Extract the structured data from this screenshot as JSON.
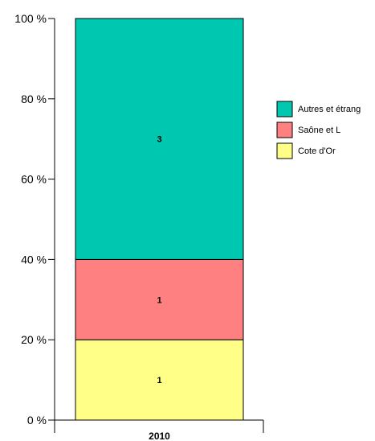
{
  "chart_data": {
    "type": "bar",
    "stacked": true,
    "normalized": true,
    "categories": [
      "2010"
    ],
    "series": [
      {
        "name": "Cote d'Or",
        "values": [
          1
        ],
        "color": "#FFFF88"
      },
      {
        "name": "Saône et L",
        "values": [
          1
        ],
        "color": "#FF8080"
      },
      {
        "name": "Autres et étrang",
        "values": [
          3
        ],
        "color": "#00C8B0"
      }
    ],
    "ylim": [
      0,
      100
    ],
    "yticks": [
      "0 %",
      "20 %",
      "40 %",
      "60 %",
      "80 %",
      "100 %"
    ],
    "legend": "right",
    "grid": false
  }
}
